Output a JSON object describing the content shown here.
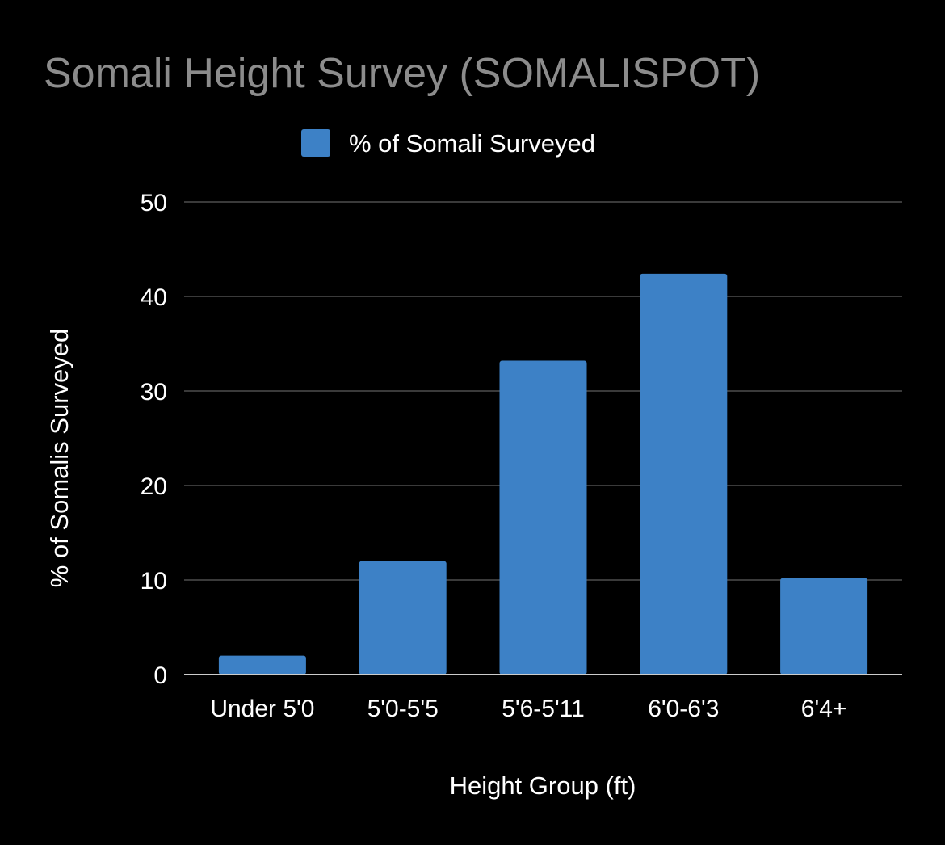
{
  "chart_data": {
    "type": "bar",
    "title": "Somali Height Survey (SOMALISPOT)",
    "xlabel": "Height Group (ft)",
    "ylabel": "% of Somalis Surveyed",
    "categories": [
      "Under 5'0",
      "5'0-5'5",
      "5'6-5'11",
      "6'0-6'3",
      "6'4+"
    ],
    "series": [
      {
        "name": "% of Somali Surveyed",
        "values": [
          2,
          12,
          33.2,
          42.4,
          10.2
        ],
        "color": "#3d81c6"
      }
    ],
    "ylim": [
      0,
      50
    ],
    "yticks": [
      0,
      10,
      20,
      30,
      40,
      50
    ],
    "grid": true,
    "legend_position": "top-center"
  },
  "colors": {
    "background": "#000000",
    "gridline": "#3a3a3a",
    "baseline": "#cccccc",
    "title": "#8c8c8c",
    "text": "#ffffff"
  }
}
